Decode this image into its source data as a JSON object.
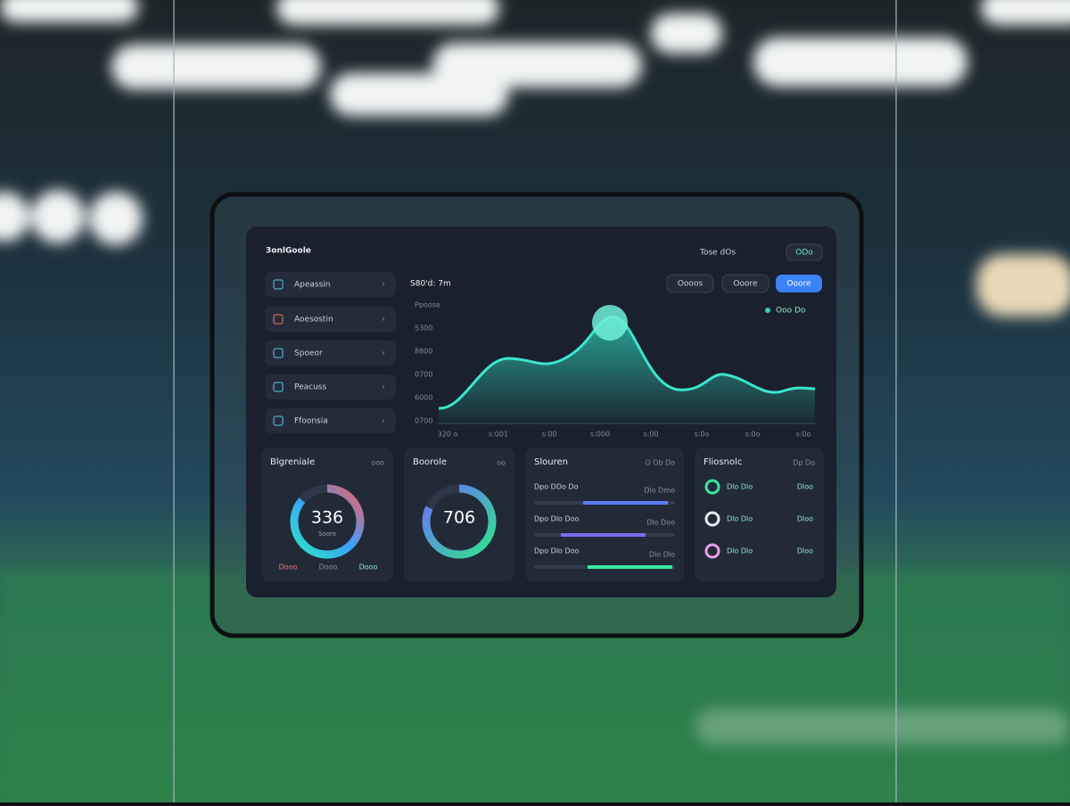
{
  "header": {
    "brand": "3onlGoole",
    "status": "Tose dOs",
    "button": "ODo"
  },
  "nav": [
    "Apeassin",
    "Aoesostin",
    "Spoeor",
    "Peacuss",
    "Ffoonsia"
  ],
  "chart": {
    "title": "S80'd: 7m",
    "filters": [
      "Oooos",
      "Ooore",
      "Ooore"
    ],
    "legend": "Ooo Do",
    "ylabels": [
      "Ppoose",
      "S300",
      "8800",
      "0700",
      "6000",
      "0700"
    ],
    "xlabels": [
      "320 o",
      "s:001",
      "s:00",
      "s:000",
      "s:00",
      "s:0o",
      "s:0o",
      "s:0o"
    ]
  },
  "cards": [
    {
      "title": "Blgreniale",
      "meta": "ooo",
      "value": "336",
      "subtitle": "Soore",
      "foot": [
        "Dooo",
        "Dooo",
        "Dooo"
      ]
    },
    {
      "title": "Boorole",
      "meta": "oo",
      "value": "706"
    },
    {
      "title": "Slouren",
      "meta": "O Ob Do",
      "rows": [
        [
          "Dpo DDo Do",
          "Dlo Dmo"
        ],
        [
          "Dpo Dlo Doo",
          "Dlo Doo"
        ],
        [
          "Dpo Dlo Doo",
          "Dlo Dlo"
        ]
      ]
    },
    {
      "title": "Fliosnolc",
      "meta": "Dp Do",
      "rows": [
        [
          "Dlo Dlo",
          "Dloo"
        ],
        [
          "Dlo Dlo",
          "Dloo"
        ],
        [
          "Dlo Dlo",
          "Dloo"
        ]
      ]
    }
  ]
}
